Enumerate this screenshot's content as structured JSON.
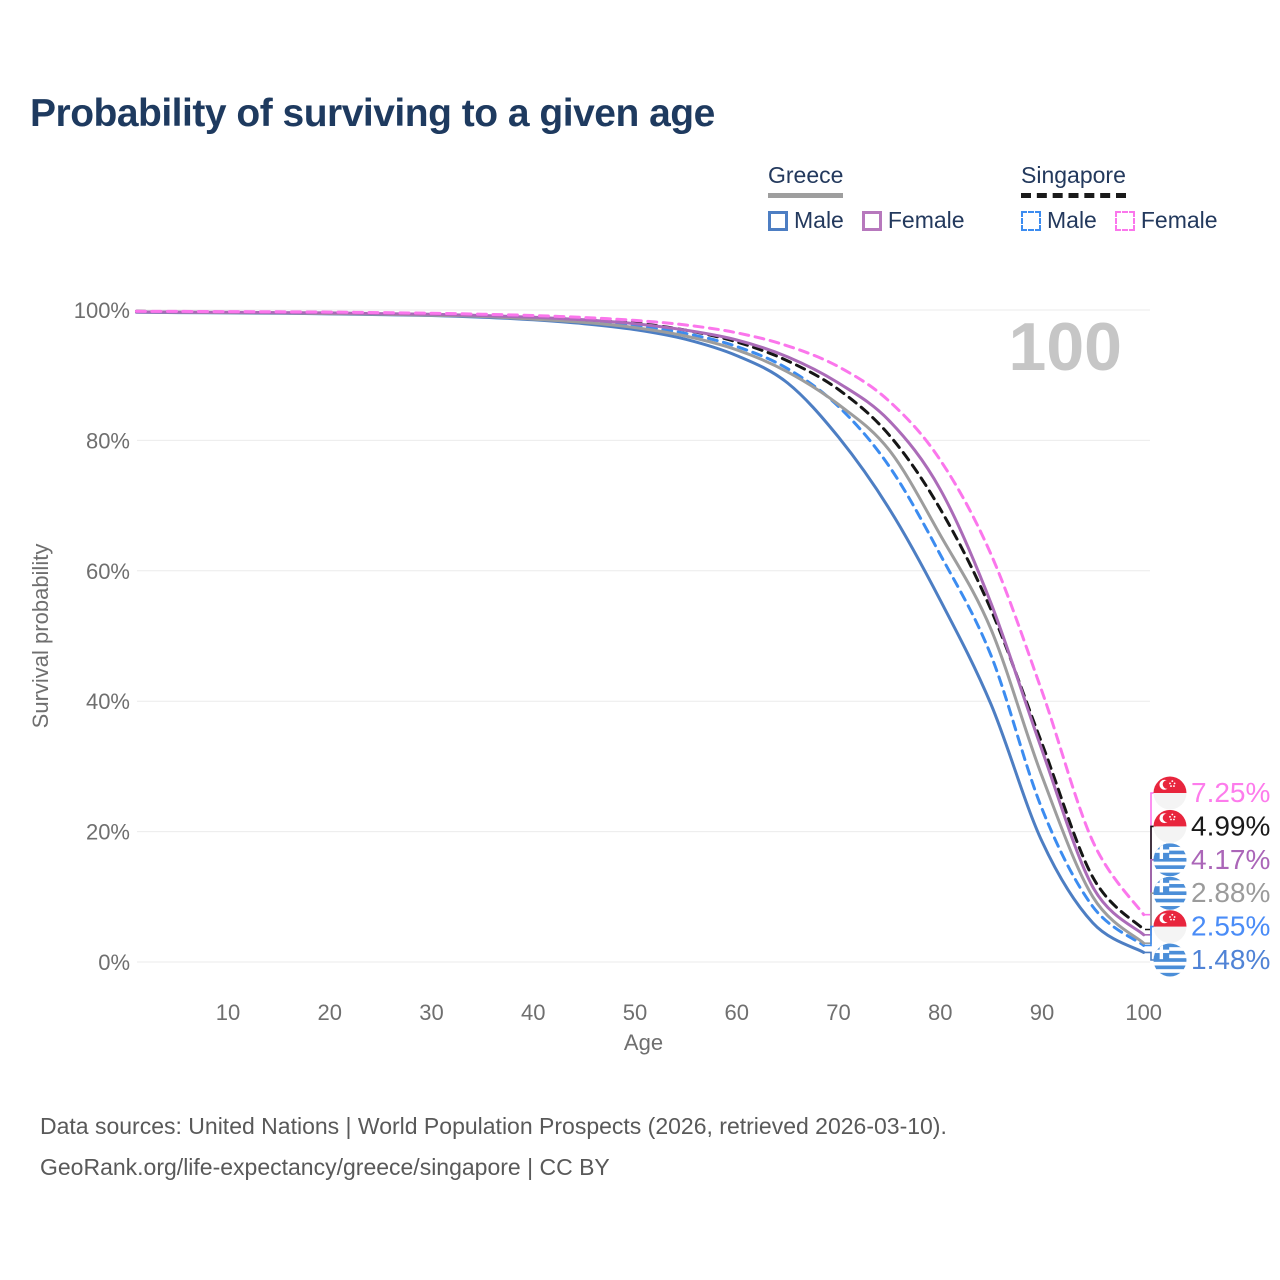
{
  "header": {
    "title": "Probability of surviving to a given age"
  },
  "legend": {
    "greece": {
      "label": "Greece",
      "male_label": "Male",
      "female_label": "Female",
      "line_color": "#9e9e9e",
      "male_color": "#4d7ec3",
      "female_color": "#b778bd",
      "line_style": "solid"
    },
    "singapore": {
      "label": "Singapore",
      "male_label": "Male",
      "female_label": "Female",
      "line_color": "#1a1a1a",
      "male_color": "#3c8cf0",
      "female_color": "#fb76ec",
      "line_style": "dashed"
    }
  },
  "chart_data": {
    "type": "line",
    "title": "Probability of surviving to a given age",
    "xlabel": "Age",
    "ylabel": "Survival probability",
    "watermark": "100",
    "xlim": [
      0,
      100
    ],
    "ylim": [
      0,
      100
    ],
    "grid": "horizontal",
    "legend_position": "top-right",
    "x_ticks": [
      10,
      20,
      30,
      40,
      50,
      60,
      70,
      80,
      90,
      100
    ],
    "y_ticks": [
      0,
      20,
      40,
      60,
      80,
      100
    ],
    "y_tick_labels": [
      "0%",
      "20%",
      "40%",
      "60%",
      "80%",
      "100%"
    ],
    "ages": [
      0,
      1,
      5,
      10,
      15,
      20,
      25,
      30,
      35,
      40,
      45,
      50,
      55,
      60,
      65,
      70,
      75,
      80,
      85,
      90,
      95,
      100
    ],
    "series": [
      {
        "name": "Greece Male",
        "country": "greece",
        "sex": "male",
        "color": "#4d7ec3",
        "dash": false,
        "values": [
          100,
          99.65,
          99.6,
          99.55,
          99.5,
          99.4,
          99.3,
          99.15,
          98.9,
          98.5,
          97.9,
          97.0,
          95.5,
          93.0,
          88.8,
          80.5,
          69.5,
          55.5,
          39.5,
          18.5,
          6.0,
          1.48
        ],
        "end_value": 1.48,
        "end_label": "1.48%",
        "label_color": "#5083d6",
        "flag": "greece"
      },
      {
        "name": "Singapore Male",
        "country": "singapore",
        "sex": "male",
        "color": "#3c8cf0",
        "dash": true,
        "values": [
          100,
          99.75,
          99.7,
          99.65,
          99.6,
          99.5,
          99.4,
          99.25,
          99.05,
          98.75,
          98.3,
          97.6,
          96.4,
          94.4,
          91.0,
          85.2,
          76.0,
          62.5,
          47.0,
          23.5,
          8.5,
          2.55
        ],
        "end_value": 2.55,
        "end_label": "2.55%",
        "label_color": "#4a8cf7",
        "flag": "singapore"
      },
      {
        "name": "Greece",
        "country": "greece",
        "sex": "both",
        "color": "#9d9d9d",
        "dash": false,
        "values": [
          100,
          99.7,
          99.65,
          99.6,
          99.55,
          99.45,
          99.35,
          99.2,
          99.0,
          98.6,
          98.1,
          97.3,
          96.0,
          93.9,
          90.5,
          85.5,
          78.5,
          65.5,
          51.0,
          28.5,
          10.0,
          2.88
        ],
        "end_value": 2.88,
        "end_label": "2.88%",
        "label_color": "#9b9b9b",
        "flag": "greece"
      },
      {
        "name": "Singapore",
        "country": "singapore",
        "sex": "both",
        "color": "#161616",
        "dash": true,
        "values": [
          100,
          99.8,
          99.75,
          99.7,
          99.65,
          99.6,
          99.5,
          99.4,
          99.2,
          98.95,
          98.55,
          98.0,
          96.9,
          95.1,
          92.2,
          87.8,
          80.8,
          69.5,
          54.0,
          33.5,
          13.0,
          4.99
        ],
        "end_value": 4.99,
        "end_label": "4.99%",
        "label_color": "#1a1a1a",
        "flag": "singapore"
      },
      {
        "name": "Greece Female",
        "country": "greece",
        "sex": "female",
        "color": "#ab6bb8",
        "dash": false,
        "values": [
          100,
          99.7,
          99.68,
          99.65,
          99.6,
          99.55,
          99.45,
          99.35,
          99.15,
          98.9,
          98.5,
          97.9,
          96.9,
          95.4,
          92.8,
          88.8,
          83.0,
          72.5,
          55.0,
          32.5,
          11.5,
          4.17
        ],
        "end_value": 4.17,
        "end_label": "4.17%",
        "label_color": "#ab66b8",
        "flag": "greece"
      },
      {
        "name": "Singapore Female",
        "country": "singapore",
        "sex": "female",
        "color": "#fb76ec",
        "dash": true,
        "values": [
          100,
          99.8,
          99.78,
          99.75,
          99.72,
          99.68,
          99.6,
          99.5,
          99.35,
          99.15,
          98.85,
          98.4,
          97.7,
          96.5,
          94.5,
          91.3,
          86.0,
          77.0,
          62.5,
          41.5,
          18.5,
          7.25
        ],
        "end_value": 7.25,
        "end_label": "7.25%",
        "label_color": "#fd7cec",
        "flag": "singapore"
      }
    ]
  },
  "footer": {
    "line1": "Data sources: United Nations | World Population Prospects (2026, retrieved 2026-03-10).",
    "line2": "GeoRank.org/life-expectancy/greece/singapore | CC BY"
  }
}
